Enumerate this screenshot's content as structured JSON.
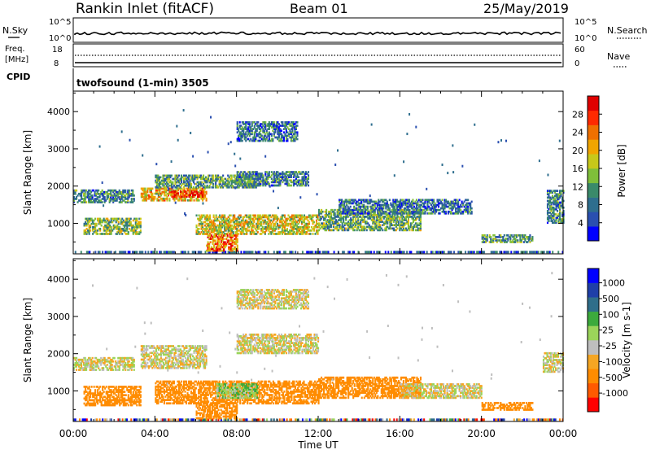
{
  "header": {
    "station": "Rankin Inlet (fitACF)",
    "beam": "Beam 01",
    "date": "25/May/2019"
  },
  "mode_label": "twofsound (1-min) 3505",
  "strip_labels": {
    "nsky": "N.Sky",
    "nsearch": "N.Search",
    "freq_line1": "Freq.",
    "freq_line2": "[MHz]",
    "cpid": "CPID",
    "nave": "Nave"
  },
  "colors": {
    "power_scale": [
      "#0000ff",
      "#2a4fb0",
      "#2e6e8e",
      "#3a8a6a",
      "#7fbf3a",
      "#c7c81a",
      "#f0a500",
      "#f07000",
      "#ff2a00",
      "#e00000"
    ],
    "velocity_scale": [
      "#ff0000",
      "#ff5a00",
      "#ff8c00",
      "#f5a623",
      "#bebebe",
      "#9bd45a",
      "#3caa3c",
      "#2f6e8a",
      "#1f3fa8",
      "#0000ff"
    ]
  },
  "chart_data": [
    {
      "type": "heatmap",
      "name": "power",
      "ylabel": "Slant Range [km]",
      "xlabel": "Time UT",
      "xlim_hours": [
        0,
        24
      ],
      "ylim_km": [
        180,
        4550
      ],
      "x_ticks": [
        "00:00",
        "04:00",
        "08:00",
        "12:00",
        "16:00",
        "20:00",
        "00:00"
      ],
      "y_ticks": [
        1000,
        2000,
        3000,
        4000
      ],
      "colorbar": {
        "label": "Power [dB]",
        "ticks": [
          4,
          8,
          12,
          16,
          20,
          24,
          28
        ]
      },
      "echo_regions": [
        {
          "t": [
            0.0,
            3.0
          ],
          "r": [
            1550,
            1900
          ],
          "level": 0.3
        },
        {
          "t": [
            0.5,
            3.3
          ],
          "r": [
            700,
            1150
          ],
          "level": 0.45
        },
        {
          "t": [
            3.3,
            6.5
          ],
          "r": [
            1600,
            1950
          ],
          "level": 0.6
        },
        {
          "t": [
            4.8,
            6.3
          ],
          "r": [
            1700,
            1850
          ],
          "level": 0.9
        },
        {
          "t": [
            4.0,
            9.0
          ],
          "r": [
            1950,
            2300
          ],
          "level": 0.35
        },
        {
          "t": [
            6.0,
            12.0
          ],
          "r": [
            700,
            1200
          ],
          "level": 0.55
        },
        {
          "t": [
            6.5,
            8.0
          ],
          "r": [
            250,
            700
          ],
          "level": 0.75
        },
        {
          "t": [
            8.0,
            11.5
          ],
          "r": [
            2000,
            2400
          ],
          "level": 0.3
        },
        {
          "t": [
            8.0,
            11.0
          ],
          "r": [
            3200,
            3700
          ],
          "level": 0.25
        },
        {
          "t": [
            12.0,
            17.0
          ],
          "r": [
            800,
            1350
          ],
          "level": 0.4
        },
        {
          "t": [
            13.0,
            19.5
          ],
          "r": [
            1250,
            1650
          ],
          "level": 0.25
        },
        {
          "t": [
            20.0,
            22.5
          ],
          "r": [
            480,
            700
          ],
          "level": 0.35
        },
        {
          "t": [
            23.2,
            24.0
          ],
          "r": [
            1000,
            1900
          ],
          "level": 0.3
        }
      ]
    },
    {
      "type": "heatmap",
      "name": "velocity",
      "ylabel": "Slant Range [km]",
      "xlabel": "Time UT",
      "xlim_hours": [
        0,
        24
      ],
      "ylim_km": [
        180,
        4550
      ],
      "x_ticks": [
        "00:00",
        "04:00",
        "08:00",
        "12:00",
        "16:00",
        "20:00",
        "00:00"
      ],
      "y_ticks": [
        1000,
        2000,
        3000,
        4000
      ],
      "colorbar": {
        "label": "Velocity [m s-1]",
        "ticks": [
          -1000,
          -500,
          -100,
          -25,
          25,
          100,
          500,
          1000
        ]
      },
      "echo_regions": [
        {
          "t": [
            0.0,
            3.0
          ],
          "r": [
            1550,
            1900
          ],
          "v": 0
        },
        {
          "t": [
            0.5,
            3.3
          ],
          "r": [
            600,
            1100
          ],
          "v": -300
        },
        {
          "t": [
            3.3,
            6.5
          ],
          "r": [
            1600,
            2200
          ],
          "v": 0
        },
        {
          "t": [
            4.0,
            12.0
          ],
          "r": [
            650,
            1250
          ],
          "v": -250
        },
        {
          "t": [
            7.0,
            9.0
          ],
          "r": [
            800,
            1200
          ],
          "v": 80
        },
        {
          "t": [
            6.0,
            8.0
          ],
          "r": [
            250,
            700
          ],
          "v": -200
        },
        {
          "t": [
            8.0,
            12.0
          ],
          "r": [
            2000,
            2500
          ],
          "v": 0
        },
        {
          "t": [
            8.0,
            11.5
          ],
          "r": [
            3200,
            3700
          ],
          "v": 0
        },
        {
          "t": [
            12.0,
            17.0
          ],
          "r": [
            800,
            1350
          ],
          "v": -300
        },
        {
          "t": [
            16.0,
            20.0
          ],
          "r": [
            800,
            1200
          ],
          "v": 0
        },
        {
          "t": [
            20.0,
            22.5
          ],
          "r": [
            480,
            700
          ],
          "v": -300
        },
        {
          "t": [
            23.0,
            24.0
          ],
          "r": [
            1500,
            2000
          ],
          "v": 0
        }
      ]
    }
  ],
  "strips": {
    "nsky_ticks": [
      "10^5",
      "10^0"
    ],
    "freq_ticks": [
      18,
      8
    ],
    "nave_ticks": [
      60,
      0
    ]
  }
}
